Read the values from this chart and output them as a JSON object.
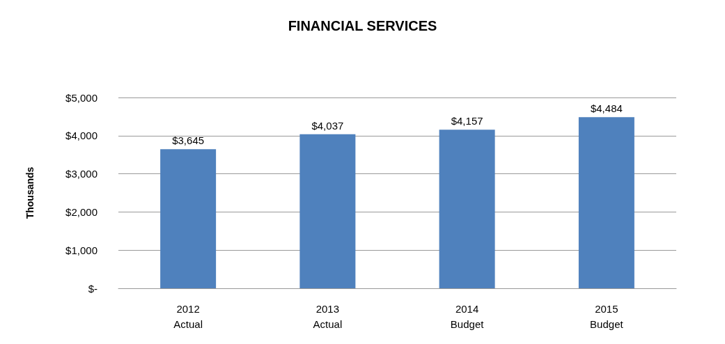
{
  "chart_data": {
    "type": "bar",
    "title": "FINANCIAL SERVICES",
    "ylabel": "Thousands",
    "categories": [
      "2012\nActual",
      "2013\nActual",
      "2014\nBudget",
      "2015\nBudget"
    ],
    "values": [
      3645,
      4037,
      4157,
      4484
    ],
    "value_labels": [
      "$3,645",
      "$4,037",
      "$4,157",
      "$4,484"
    ],
    "color": "#4f81bd",
    "ylim": [
      0,
      5000
    ],
    "yticks": [
      {
        "value": 0,
        "label": "$-"
      },
      {
        "value": 1000,
        "label": "$1,000"
      },
      {
        "value": 2000,
        "label": "$2,000"
      },
      {
        "value": 3000,
        "label": "$3,000"
      },
      {
        "value": 4000,
        "label": "$4,000"
      },
      {
        "value": 5000,
        "label": "$5,000"
      }
    ],
    "grid": "y"
  }
}
